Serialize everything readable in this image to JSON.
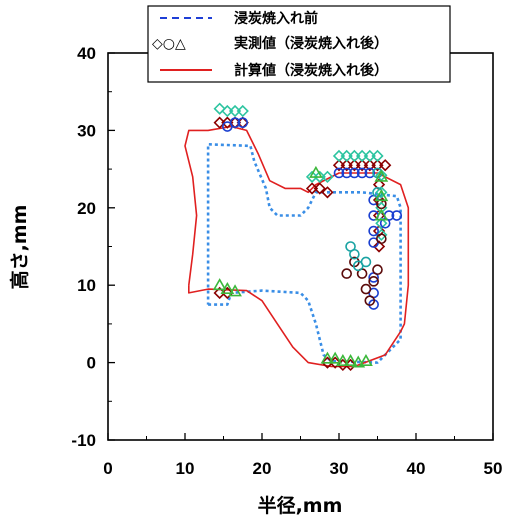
{
  "chart_data": {
    "type": "scatter",
    "xlabel": "半径,mm",
    "ylabel": "高さ,mm",
    "xlim": [
      0,
      50
    ],
    "ylim": [
      -10,
      40
    ],
    "xticks": [
      0,
      10,
      20,
      30,
      40,
      50
    ],
    "yticks": [
      -10,
      0,
      10,
      20,
      30,
      40
    ],
    "grid": false,
    "legend_position": "top-center",
    "legend": [
      {
        "label": "浸炭焼入れ前",
        "key": "",
        "color": "#1f3fd6",
        "style": "dashed"
      },
      {
        "label": "実測値（浸炭焼入れ後）",
        "key": "◇○△",
        "color": "#000000",
        "style": "markers"
      },
      {
        "label": "計算値（浸炭焼入れ後）",
        "key": "",
        "color": "#e02020",
        "style": "solid"
      }
    ],
    "colors": {
      "before": "#3a8ee6",
      "calc": "#e02020",
      "diamond": "#8b0000",
      "circle_dark": "#5a0a0a",
      "circle_blue": "#1a3fd0",
      "circle_teal": "#1aa3a3",
      "triangle": "#3cb83c",
      "diamond_teal": "#2cc4a0"
    },
    "series": [
      {
        "name": "浸炭焼入れ前",
        "style": "dotted",
        "color": "#3a8ee6",
        "points": [
          [
            13,
            7.5
          ],
          [
            15.5,
            7.5
          ],
          [
            16,
            9
          ],
          [
            20,
            9.3
          ],
          [
            25,
            9
          ],
          [
            26,
            8
          ],
          [
            27,
            5
          ],
          [
            28,
            1
          ],
          [
            29,
            0.2
          ],
          [
            35,
            0
          ],
          [
            37,
            2
          ],
          [
            38,
            3
          ],
          [
            38,
            20
          ],
          [
            37.5,
            21.5
          ],
          [
            33,
            22
          ],
          [
            27,
            22
          ],
          [
            26,
            20
          ],
          [
            25,
            19
          ],
          [
            22,
            19
          ],
          [
            21,
            20
          ],
          [
            20.5,
            22.5
          ],
          [
            19,
            26
          ],
          [
            18.5,
            28
          ],
          [
            13,
            28.2
          ],
          [
            13,
            7.5
          ]
        ]
      },
      {
        "name": "計算値（浸炭焼入れ後）",
        "style": "solid",
        "color": "#e02020",
        "points": [
          [
            10.5,
            10
          ],
          [
            11,
            14
          ],
          [
            11.5,
            19
          ],
          [
            11,
            24
          ],
          [
            10,
            28
          ],
          [
            10.5,
            30
          ],
          [
            13,
            30
          ],
          [
            16,
            30.5
          ],
          [
            18,
            30
          ],
          [
            19.5,
            27
          ],
          [
            21,
            23.5
          ],
          [
            23,
            22.5
          ],
          [
            25,
            22.5
          ],
          [
            26,
            22
          ],
          [
            27,
            23
          ],
          [
            30,
            24.5
          ],
          [
            35,
            24.5
          ],
          [
            38,
            23
          ],
          [
            39,
            20
          ],
          [
            39,
            10
          ],
          [
            38.5,
            5
          ],
          [
            38,
            4
          ],
          [
            36,
            1
          ],
          [
            32,
            -0.5
          ],
          [
            29,
            -0.5
          ],
          [
            26,
            0
          ],
          [
            24,
            2
          ],
          [
            22,
            5
          ],
          [
            20,
            8
          ],
          [
            18,
            9.3
          ],
          [
            13,
            9.5
          ],
          [
            10.5,
            9
          ],
          [
            10.5,
            10
          ]
        ]
      }
    ],
    "markers": [
      {
        "shape": "diamond",
        "color": "#8b0000",
        "points": [
          [
            14.5,
            31
          ],
          [
            15.5,
            31
          ],
          [
            16.5,
            31
          ],
          [
            17.5,
            31
          ],
          [
            14.5,
            9
          ],
          [
            15.5,
            9
          ],
          [
            26.5,
            22.5
          ],
          [
            27.5,
            22.5
          ],
          [
            28.5,
            22
          ],
          [
            30,
            25.5
          ],
          [
            31,
            25.5
          ],
          [
            32,
            25.5
          ],
          [
            33,
            25.5
          ],
          [
            34,
            25.5
          ],
          [
            35,
            25.5
          ],
          [
            36,
            25.5
          ],
          [
            35.2,
            23
          ],
          [
            35.2,
            21
          ],
          [
            35.2,
            19
          ],
          [
            35.2,
            17
          ],
          [
            35.2,
            15
          ],
          [
            28.5,
            0
          ],
          [
            29.5,
            0
          ],
          [
            30.5,
            -0.3
          ],
          [
            31.5,
            -0.3
          ]
        ]
      },
      {
        "shape": "diamond",
        "color": "#2cc4a0",
        "points": [
          [
            14.5,
            32.8
          ],
          [
            15.5,
            32.5
          ],
          [
            16.5,
            32.5
          ],
          [
            17.5,
            32.5
          ],
          [
            26.5,
            24
          ],
          [
            27.5,
            24
          ],
          [
            28.5,
            24
          ],
          [
            30,
            26.7
          ],
          [
            31,
            26.7
          ],
          [
            32,
            26.7
          ],
          [
            33,
            26.7
          ],
          [
            34,
            26.7
          ],
          [
            35,
            26.7
          ],
          [
            35.5,
            24.2
          ],
          [
            35.5,
            22
          ],
          [
            35.5,
            20
          ],
          [
            35.5,
            18
          ],
          [
            35.5,
            16.5
          ]
        ]
      },
      {
        "shape": "circle",
        "color": "#1a3fd0",
        "points": [
          [
            15.5,
            30.5
          ],
          [
            16.5,
            31
          ],
          [
            17.5,
            31
          ],
          [
            30,
            24.5
          ],
          [
            31,
            24.5
          ],
          [
            32,
            24.5
          ],
          [
            33,
            24.5
          ],
          [
            34,
            24.5
          ],
          [
            34.5,
            21
          ],
          [
            34.5,
            19
          ],
          [
            34.5,
            17
          ],
          [
            34.5,
            15.5
          ],
          [
            36.5,
            19
          ],
          [
            37.5,
            19
          ],
          [
            36,
            18
          ],
          [
            34.5,
            11
          ],
          [
            34.5,
            9
          ],
          [
            34.5,
            7.5
          ]
        ]
      },
      {
        "shape": "circle",
        "color": "#5a0a0a",
        "points": [
          [
            31,
            11.5
          ],
          [
            32,
            13
          ],
          [
            33,
            11.5
          ],
          [
            33.5,
            9.5
          ],
          [
            34,
            8
          ],
          [
            34.5,
            10.5
          ],
          [
            35,
            12
          ],
          [
            35.5,
            16
          ],
          [
            35.5,
            20.5
          ]
        ]
      },
      {
        "shape": "circle",
        "color": "#1aa3a3",
        "points": [
          [
            31.5,
            15
          ],
          [
            32,
            14
          ],
          [
            32.5,
            12.5
          ],
          [
            33.5,
            13
          ],
          [
            35,
            22
          ],
          [
            35,
            24.5
          ]
        ]
      },
      {
        "shape": "triangle",
        "color": "#3cb83c",
        "points": [
          [
            14.5,
            10
          ],
          [
            15.5,
            9.5
          ],
          [
            16.5,
            9.2
          ],
          [
            27,
            24.5
          ],
          [
            28.5,
            0.5
          ],
          [
            29.5,
            0.5
          ],
          [
            30.5,
            0.2
          ],
          [
            31.5,
            0.2
          ],
          [
            32.5,
            0
          ],
          [
            33.5,
            0.2
          ],
          [
            35.5,
            24
          ],
          [
            35.5,
            21.5
          ],
          [
            35.5,
            19
          ]
        ]
      }
    ]
  }
}
